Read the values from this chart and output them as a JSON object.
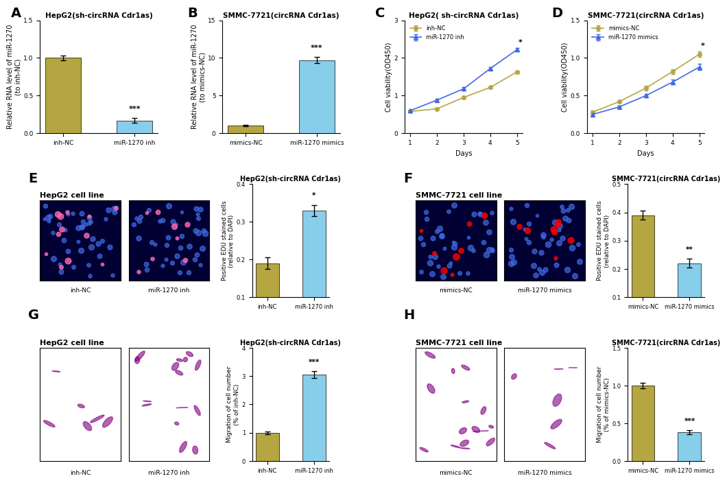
{
  "panel_A": {
    "title": "HepG2(sh-circRNA Cdr1as)",
    "ylabel": "Relative RNA level of miR-1270\n(to inh-NC)",
    "categories": [
      "inh-NC",
      "miR-1270 inh"
    ],
    "values": [
      1.0,
      0.17
    ],
    "errors": [
      0.03,
      0.03
    ],
    "colors": [
      "#b5a642",
      "#87ceeb"
    ],
    "ylim": [
      0,
      1.5
    ],
    "yticks": [
      0.0,
      0.5,
      1.0,
      1.5
    ],
    "sig_labels": [
      "",
      "***"
    ]
  },
  "panel_B": {
    "title": "SMMC-7721(circRNA Cdr1as)",
    "ylabel": "Relative RNA level of miR-1270\n(to mimics-NC)",
    "categories": [
      "mimics-NC",
      "miR-1270 mimics"
    ],
    "values": [
      1.0,
      9.7
    ],
    "errors": [
      0.1,
      0.4
    ],
    "colors": [
      "#b5a642",
      "#87ceeb"
    ],
    "ylim": [
      0,
      15
    ],
    "yticks": [
      0,
      5,
      10,
      15
    ],
    "sig_labels": [
      "",
      "***"
    ]
  },
  "panel_C": {
    "title": "HepG2( sh-circRNA Cdr1as)",
    "ylabel": "Cell viability(OD450)",
    "xlabel": "Days",
    "days": [
      1,
      2,
      3,
      4,
      5
    ],
    "series": [
      {
        "label": "inh-NC",
        "values": [
          0.58,
          0.65,
          0.95,
          1.22,
          1.63
        ],
        "errors": [
          0.02,
          0.02,
          0.03,
          0.03,
          0.04
        ],
        "color": "#b5a642",
        "marker": "o"
      },
      {
        "label": "miR-1270 inh",
        "values": [
          0.6,
          0.88,
          1.18,
          1.72,
          2.22
        ],
        "errors": [
          0.02,
          0.03,
          0.04,
          0.04,
          0.05
        ],
        "color": "#4169e1",
        "marker": "^"
      }
    ],
    "ylim": [
      0,
      3
    ],
    "yticks": [
      0,
      1,
      2,
      3
    ],
    "sig": "*"
  },
  "panel_D": {
    "title": "SMMC-7721(circRNA Cdr1as)",
    "ylabel": "Cell viability(OD450)",
    "xlabel": "Days",
    "days": [
      1,
      2,
      3,
      4,
      5
    ],
    "series": [
      {
        "label": "mimics-NC",
        "values": [
          0.28,
          0.42,
          0.6,
          0.82,
          1.05
        ],
        "errors": [
          0.02,
          0.02,
          0.03,
          0.03,
          0.04
        ],
        "color": "#b5a642",
        "marker": "o"
      },
      {
        "label": "miR-1270 mimics",
        "values": [
          0.25,
          0.35,
          0.5,
          0.68,
          0.88
        ],
        "errors": [
          0.02,
          0.02,
          0.02,
          0.03,
          0.04
        ],
        "color": "#4169e1",
        "marker": "^"
      }
    ],
    "ylim": [
      0,
      1.5
    ],
    "yticks": [
      0.0,
      0.5,
      1.0,
      1.5
    ],
    "sig": "*"
  },
  "panel_E_bar": {
    "title": "HepG2(sh-circRNA Cdr1as)",
    "ylabel": "Positive EDU stained cells\n(relative to DAPI)",
    "categories": [
      "inh-NC",
      "miR-1270 inh"
    ],
    "values": [
      0.19,
      0.33
    ],
    "errors": [
      0.015,
      0.015
    ],
    "colors": [
      "#b5a642",
      "#87ceeb"
    ],
    "ylim": [
      0.1,
      0.4
    ],
    "yticks": [
      0.1,
      0.2,
      0.3,
      0.4
    ],
    "sig_labels": [
      "",
      "*"
    ]
  },
  "panel_F_bar": {
    "title": "SMMC-7721(circRNA Cdr1as)",
    "ylabel": "Positive EDU stained cells\n(relative to DAPI)",
    "categories": [
      "mimics-NC",
      "miR-1270 mimics"
    ],
    "values": [
      0.39,
      0.22
    ],
    "errors": [
      0.015,
      0.015
    ],
    "colors": [
      "#b5a642",
      "#87ceeb"
    ],
    "ylim": [
      0.1,
      0.5
    ],
    "yticks": [
      0.1,
      0.2,
      0.3,
      0.4,
      0.5
    ],
    "sig_labels": [
      "",
      "**"
    ]
  },
  "panel_G_bar": {
    "title": "HepG2(sh-circRNA Cdr1as)",
    "ylabel": "Migration of cell number\n(% of inh-NC)",
    "categories": [
      "inh-NC",
      "miR-1270 inh"
    ],
    "values": [
      1.0,
      3.05
    ],
    "errors": [
      0.05,
      0.12
    ],
    "colors": [
      "#b5a642",
      "#87ceeb"
    ],
    "ylim": [
      0,
      4
    ],
    "yticks": [
      0,
      1,
      2,
      3,
      4
    ],
    "sig_labels": [
      "",
      "***"
    ]
  },
  "panel_H_bar": {
    "title": "SMMC-7721(circRNA Cdr1as)",
    "ylabel": "Migration of cell number\n(% of mimics-NC)",
    "categories": [
      "mimics-NC",
      "miR-1270 mimics"
    ],
    "values": [
      1.0,
      0.38
    ],
    "errors": [
      0.04,
      0.03
    ],
    "colors": [
      "#b5a642",
      "#87ceeb"
    ],
    "ylim": [
      0,
      1.5
    ],
    "yticks": [
      0.0,
      0.5,
      1.0,
      1.5
    ],
    "sig_labels": [
      "",
      "***"
    ]
  },
  "panel_labels": [
    "A",
    "B",
    "C",
    "D",
    "E",
    "F",
    "G",
    "H"
  ],
  "img_bg_color": "#000033",
  "img_cell_color_1": "#ff69b4",
  "img_cell_color_2": "#4169e1",
  "background_color": "#ffffff"
}
